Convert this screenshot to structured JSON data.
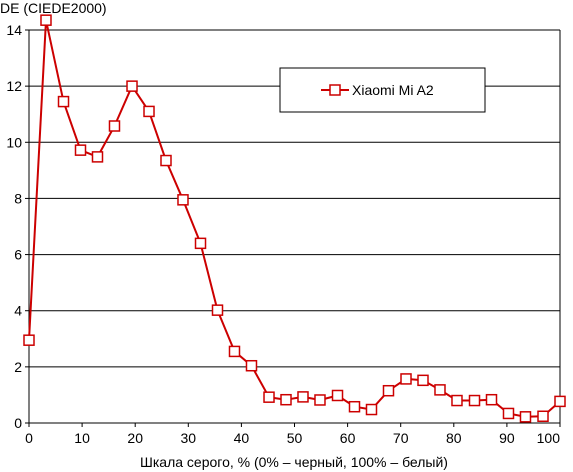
{
  "chart_data": {
    "type": "line",
    "title": "",
    "ylabel": "DE (CIEDE2000)",
    "xlabel": "Шкала серого, % (0% – черный, 100% – белый)",
    "xlim": [
      0,
      100
    ],
    "ylim": [
      0,
      14
    ],
    "xticks": [
      0,
      10,
      20,
      30,
      40,
      50,
      60,
      70,
      80,
      90,
      100
    ],
    "yticks": [
      0,
      2,
      4,
      6,
      8,
      10,
      12,
      14
    ],
    "grid": "horizontal",
    "legend_position": "top-right",
    "series": [
      {
        "name": "Xiaomi Mi A2",
        "color": "#cc0000",
        "marker": "hollow-square",
        "x": [
          0,
          3.2,
          6.5,
          9.7,
          12.9,
          16.1,
          19.4,
          22.6,
          25.8,
          29.0,
          32.3,
          35.5,
          38.7,
          41.9,
          45.2,
          48.4,
          51.6,
          54.8,
          58.1,
          61.3,
          64.5,
          67.7,
          71.0,
          74.2,
          77.4,
          80.6,
          83.9,
          87.1,
          90.3,
          93.5,
          96.8,
          100
        ],
        "values": [
          2.95,
          14.35,
          11.45,
          9.72,
          9.48,
          10.58,
          12.0,
          11.1,
          9.35,
          7.95,
          6.4,
          4.02,
          2.55,
          2.04,
          0.92,
          0.83,
          0.93,
          0.82,
          0.98,
          0.58,
          0.48,
          1.15,
          1.57,
          1.52,
          1.18,
          0.8,
          0.8,
          0.83,
          0.34,
          0.22,
          0.24,
          0.77
        ]
      }
    ]
  }
}
